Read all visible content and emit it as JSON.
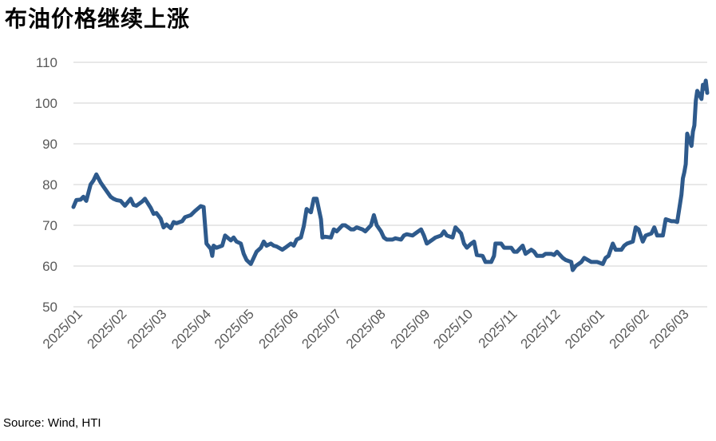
{
  "title": "布油价格继续上涨",
  "source": "Source: Wind, HTI",
  "chart_data": {
    "type": "line",
    "title": "",
    "xlabel": "",
    "ylabel": "",
    "ylim": [
      50,
      110
    ],
    "yticks": [
      50,
      60,
      70,
      80,
      90,
      100,
      110
    ],
    "xlim": [
      "2025-01-01",
      "2026-03-20"
    ],
    "xticks": [
      "2025/01",
      "2025/02",
      "2025/03",
      "2025/04",
      "2025/05",
      "2025/06",
      "2025/07",
      "2025/08",
      "2025/09",
      "2025/10",
      "2025/11",
      "2025/12",
      "2026/01",
      "2026/02",
      "2026/03"
    ],
    "grid": "horizontal",
    "legend": "none",
    "color": "#2E5A8C",
    "series": [
      {
        "values": [
          [
            "2025-01-01",
            74.5
          ],
          [
            "2025-01-03",
            76.2
          ],
          [
            "2025-01-06",
            76.3
          ],
          [
            "2025-01-08",
            77.0
          ],
          [
            "2025-01-10",
            76.0
          ],
          [
            "2025-01-13",
            80.0
          ],
          [
            "2025-01-15",
            81.0
          ],
          [
            "2025-01-17",
            82.5
          ],
          [
            "2025-01-20",
            80.5
          ],
          [
            "2025-01-22",
            79.5
          ],
          [
            "2025-01-24",
            78.5
          ],
          [
            "2025-01-27",
            77.0
          ],
          [
            "2025-01-29",
            76.5
          ],
          [
            "2025-01-31",
            76.2
          ],
          [
            "2025-02-03",
            76.0
          ],
          [
            "2025-02-06",
            74.8
          ],
          [
            "2025-02-10",
            76.5
          ],
          [
            "2025-02-12",
            75.0
          ],
          [
            "2025-02-14",
            74.8
          ],
          [
            "2025-02-18",
            75.8
          ],
          [
            "2025-02-20",
            76.5
          ],
          [
            "2025-02-24",
            74.3
          ],
          [
            "2025-02-26",
            72.8
          ],
          [
            "2025-02-28",
            73.0
          ],
          [
            "2025-03-03",
            71.6
          ],
          [
            "2025-03-05",
            69.5
          ],
          [
            "2025-03-07",
            70.2
          ],
          [
            "2025-03-10",
            69.3
          ],
          [
            "2025-03-12",
            70.8
          ],
          [
            "2025-03-14",
            70.5
          ],
          [
            "2025-03-18",
            71.0
          ],
          [
            "2025-03-20",
            72.0
          ],
          [
            "2025-03-24",
            72.5
          ],
          [
            "2025-03-27",
            73.5
          ],
          [
            "2025-03-31",
            74.7
          ],
          [
            "2025-04-02",
            74.5
          ],
          [
            "2025-04-03",
            70.0
          ],
          [
            "2025-04-04",
            65.5
          ],
          [
            "2025-04-07",
            64.2
          ],
          [
            "2025-04-08",
            62.5
          ],
          [
            "2025-04-09",
            65.0
          ],
          [
            "2025-04-11",
            64.5
          ],
          [
            "2025-04-15",
            65.0
          ],
          [
            "2025-04-17",
            67.5
          ],
          [
            "2025-04-21",
            66.3
          ],
          [
            "2025-04-23",
            67.0
          ],
          [
            "2025-04-25",
            66.0
          ],
          [
            "2025-04-28",
            65.5
          ],
          [
            "2025-04-30",
            63.0
          ],
          [
            "2025-05-02",
            61.5
          ],
          [
            "2025-05-05",
            60.5
          ],
          [
            "2025-05-07",
            62.0
          ],
          [
            "2025-05-09",
            63.5
          ],
          [
            "2025-05-12",
            64.5
          ],
          [
            "2025-05-14",
            66.0
          ],
          [
            "2025-05-16",
            65.0
          ],
          [
            "2025-05-19",
            65.5
          ],
          [
            "2025-05-21",
            65.0
          ],
          [
            "2025-05-23",
            64.8
          ],
          [
            "2025-05-27",
            64.0
          ],
          [
            "2025-05-29",
            64.5
          ],
          [
            "2025-06-02",
            65.5
          ],
          [
            "2025-06-04",
            65.0
          ],
          [
            "2025-06-06",
            66.5
          ],
          [
            "2025-06-09",
            67.0
          ],
          [
            "2025-06-11",
            69.8
          ],
          [
            "2025-06-13",
            74.0
          ],
          [
            "2025-06-16",
            73.2
          ],
          [
            "2025-06-18",
            76.5
          ],
          [
            "2025-06-20",
            76.5
          ],
          [
            "2025-06-23",
            71.5
          ],
          [
            "2025-06-24",
            67.0
          ],
          [
            "2025-06-26",
            67.2
          ],
          [
            "2025-06-30",
            67.0
          ],
          [
            "2025-07-02",
            69.0
          ],
          [
            "2025-07-04",
            68.5
          ],
          [
            "2025-07-08",
            70.0
          ],
          [
            "2025-07-10",
            70.0
          ],
          [
            "2025-07-14",
            69.0
          ],
          [
            "2025-07-16",
            69.0
          ],
          [
            "2025-07-18",
            69.5
          ],
          [
            "2025-07-22",
            69.0
          ],
          [
            "2025-07-24",
            68.5
          ],
          [
            "2025-07-28",
            70.0
          ],
          [
            "2025-07-30",
            72.5
          ],
          [
            "2025-08-01",
            70.0
          ],
          [
            "2025-08-04",
            68.5
          ],
          [
            "2025-08-06",
            67.0
          ],
          [
            "2025-08-08",
            66.5
          ],
          [
            "2025-08-12",
            66.5
          ],
          [
            "2025-08-14",
            66.8
          ],
          [
            "2025-08-18",
            66.5
          ],
          [
            "2025-08-20",
            67.5
          ],
          [
            "2025-08-22",
            67.8
          ],
          [
            "2025-08-26",
            67.5
          ],
          [
            "2025-08-28",
            68.0
          ],
          [
            "2025-09-01",
            69.0
          ],
          [
            "2025-09-03",
            67.5
          ],
          [
            "2025-09-05",
            65.5
          ],
          [
            "2025-09-09",
            66.5
          ],
          [
            "2025-09-11",
            67.0
          ],
          [
            "2025-09-15",
            67.5
          ],
          [
            "2025-09-17",
            68.5
          ],
          [
            "2025-09-19",
            67.5
          ],
          [
            "2025-09-23",
            67.0
          ],
          [
            "2025-09-25",
            69.5
          ],
          [
            "2025-09-29",
            68.0
          ],
          [
            "2025-10-01",
            65.5
          ],
          [
            "2025-10-03",
            64.5
          ],
          [
            "2025-10-06",
            65.5
          ],
          [
            "2025-10-08",
            66.0
          ],
          [
            "2025-10-10",
            62.7
          ],
          [
            "2025-10-14",
            62.5
          ],
          [
            "2025-10-16",
            61.0
          ],
          [
            "2025-10-20",
            61.0
          ],
          [
            "2025-10-22",
            62.5
          ],
          [
            "2025-10-23",
            65.5
          ],
          [
            "2025-10-27",
            65.5
          ],
          [
            "2025-10-29",
            64.5
          ],
          [
            "2025-11-03",
            64.5
          ],
          [
            "2025-11-05",
            63.5
          ],
          [
            "2025-11-07",
            63.5
          ],
          [
            "2025-11-11",
            65.0
          ],
          [
            "2025-11-13",
            63.0
          ],
          [
            "2025-11-17",
            64.0
          ],
          [
            "2025-11-19",
            63.5
          ],
          [
            "2025-11-21",
            62.5
          ],
          [
            "2025-11-25",
            62.5
          ],
          [
            "2025-11-27",
            63.0
          ],
          [
            "2025-12-01",
            63.0
          ],
          [
            "2025-12-03",
            62.7
          ],
          [
            "2025-12-05",
            63.5
          ],
          [
            "2025-12-09",
            62.0
          ],
          [
            "2025-12-11",
            61.5
          ],
          [
            "2025-12-15",
            61.0
          ],
          [
            "2025-12-16",
            59.0
          ],
          [
            "2025-12-18",
            60.0
          ],
          [
            "2025-12-22",
            61.0
          ],
          [
            "2025-12-24",
            62.0
          ],
          [
            "2025-12-29",
            61.0
          ],
          [
            "2026-01-02",
            61.0
          ],
          [
            "2026-01-06",
            60.5
          ],
          [
            "2026-01-08",
            62.0
          ],
          [
            "2026-01-10",
            62.5
          ],
          [
            "2026-01-13",
            65.5
          ],
          [
            "2026-01-15",
            64.0
          ],
          [
            "2026-01-19",
            64.0
          ],
          [
            "2026-01-21",
            65.0
          ],
          [
            "2026-01-23",
            65.5
          ],
          [
            "2026-01-27",
            66.0
          ],
          [
            "2026-01-29",
            69.5
          ],
          [
            "2026-01-31",
            69.0
          ],
          [
            "2026-02-03",
            66.0
          ],
          [
            "2026-02-05",
            67.5
          ],
          [
            "2026-02-09",
            68.0
          ],
          [
            "2026-02-11",
            69.5
          ],
          [
            "2026-02-13",
            67.5
          ],
          [
            "2026-02-17",
            67.5
          ],
          [
            "2026-02-19",
            71.5
          ],
          [
            "2026-02-23",
            71.0
          ],
          [
            "2026-02-25",
            71.0
          ],
          [
            "2026-02-27",
            70.8
          ],
          [
            "2026-03-02",
            77.5
          ],
          [
            "2026-03-03",
            81.5
          ],
          [
            "2026-03-04",
            83.0
          ],
          [
            "2026-03-05",
            85.0
          ],
          [
            "2026-03-06",
            92.5
          ],
          [
            "2026-03-09",
            89.5
          ],
          [
            "2026-03-10",
            93.0
          ],
          [
            "2026-03-11",
            94.5
          ],
          [
            "2026-03-12",
            100.5
          ],
          [
            "2026-03-13",
            103.0
          ],
          [
            "2026-03-16",
            101.0
          ],
          [
            "2026-03-17",
            104.5
          ],
          [
            "2026-03-18",
            103.5
          ],
          [
            "2026-03-19",
            105.5
          ],
          [
            "2026-03-20",
            102.5
          ]
        ]
      }
    ]
  }
}
